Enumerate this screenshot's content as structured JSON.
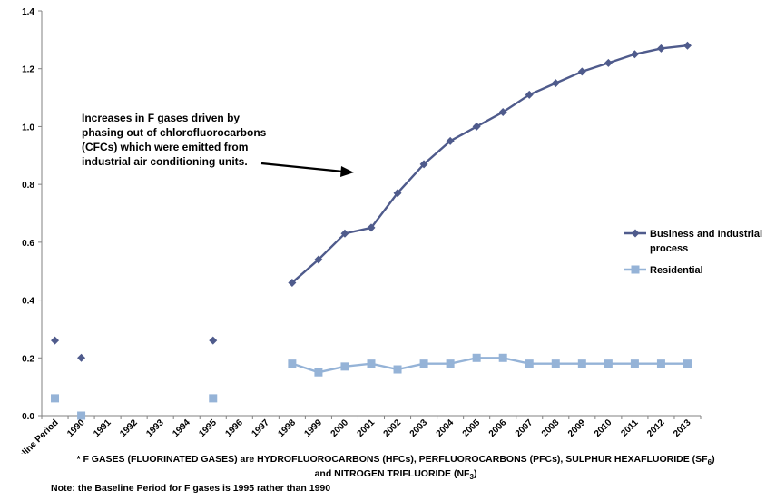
{
  "chart_data": {
    "type": "line",
    "categories": [
      "Baseline Period",
      "1990",
      "1991",
      "1992",
      "1993",
      "1994",
      "1995",
      "1996",
      "1997",
      "1998",
      "1999",
      "2000",
      "2001",
      "2002",
      "2003",
      "2004",
      "2005",
      "2006",
      "2007",
      "2008",
      "2009",
      "2010",
      "2011",
      "2012",
      "2013"
    ],
    "series": [
      {
        "name": "Business and Industrial process",
        "color": "#4F5B8C",
        "marker": "diamond",
        "values": [
          0.26,
          0.2,
          null,
          null,
          null,
          null,
          0.26,
          null,
          null,
          0.46,
          0.54,
          0.63,
          0.65,
          0.77,
          0.87,
          0.95,
          1.0,
          1.05,
          1.11,
          1.15,
          1.19,
          1.22,
          1.25,
          1.27,
          1.28
        ]
      },
      {
        "name": "Residential",
        "color": "#95B3D7",
        "marker": "square",
        "values": [
          0.06,
          0.0,
          null,
          null,
          null,
          null,
          0.06,
          null,
          null,
          0.18,
          0.15,
          0.17,
          0.18,
          0.16,
          0.18,
          0.18,
          0.2,
          0.2,
          0.18,
          0.18,
          0.18,
          0.18,
          0.18,
          0.18,
          0.18
        ]
      }
    ],
    "yticks": [
      "0.0",
      "0.2",
      "0.4",
      "0.6",
      "0.8",
      "1.0",
      "1.2",
      "1.4"
    ],
    "ylim": [
      0,
      1.4
    ],
    "grid": false,
    "legend_position": "right",
    "annotation": "Increases in F gases driven by phasing out of chlorofluorocarbons (CFCs) which were emitted from industrial air conditioning units."
  },
  "footnotes": {
    "line1": "* F GASES (FLUORINATED GASES) are HYDROFLUOROCARBONS (HFCs), PERFLUOROCARBONS (PFCs), SULPHUR HEXAFLUORIDE (SF",
    "line1_sub": "6",
    "line1_end": ")",
    "line2": "and NITROGEN TRIFLUORIDE (NF",
    "line2_sub": "3",
    "line2_end": ")",
    "note": "Note: the Baseline Period for F gases is 1995 rather than 1990"
  }
}
